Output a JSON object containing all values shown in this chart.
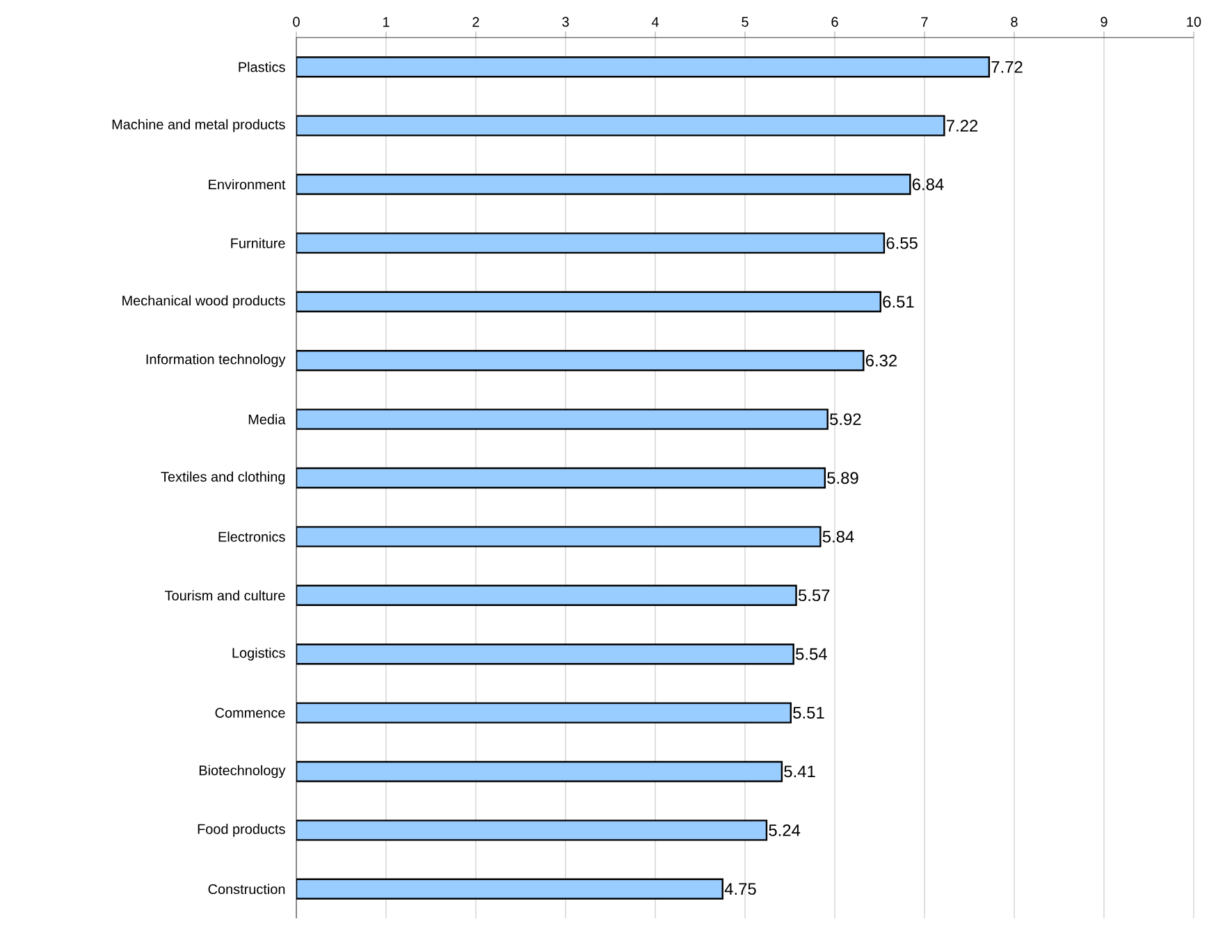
{
  "chart_data": {
    "type": "bar",
    "orientation": "horizontal",
    "categories": [
      "Plastics",
      "Machine and metal products",
      "Environment",
      "Furniture",
      "Mechanical wood products",
      "Information technology",
      "Media",
      "Textiles and clothing",
      "Electronics",
      "Tourism and culture",
      "Logistics",
      "Commence",
      "Biotechnology",
      "Food products",
      "Construction"
    ],
    "values": [
      7.72,
      7.22,
      6.84,
      6.55,
      6.51,
      6.32,
      5.92,
      5.89,
      5.84,
      5.57,
      5.54,
      5.51,
      5.41,
      5.24,
      4.75
    ],
    "color": "#99ccff",
    "xlim": [
      0,
      10
    ],
    "xticks": [
      0,
      1,
      2,
      3,
      4,
      5,
      6,
      7,
      8,
      9,
      10
    ],
    "grid": "x",
    "data_labels": true
  }
}
